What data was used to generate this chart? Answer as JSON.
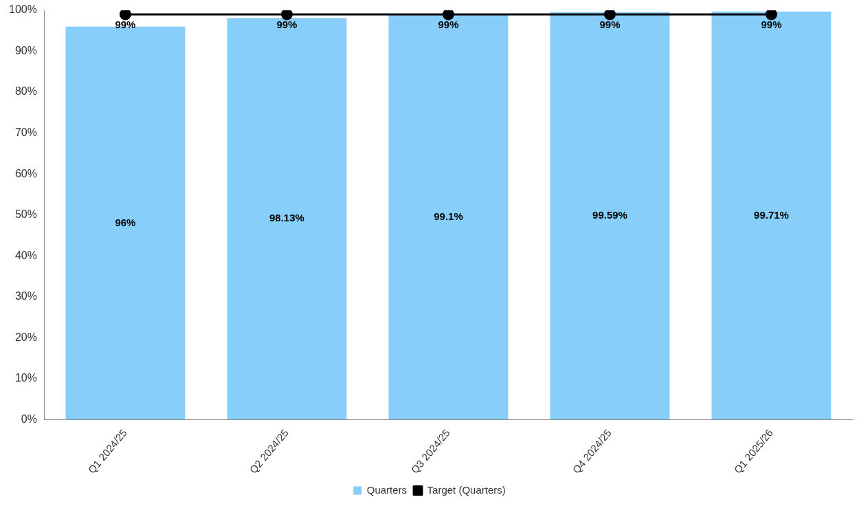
{
  "chart_data": {
    "type": "bar",
    "categories": [
      "Q1 2024/25",
      "Q2 2024/25",
      "Q3 2024/25",
      "Q4 2024/25",
      "Q1 2025/26"
    ],
    "series": [
      {
        "name": "Quarters",
        "color": "#87cefa",
        "values": [
          96,
          98.13,
          99.1,
          99.59,
          99.71
        ],
        "value_labels": [
          "96%",
          "98.13%",
          "99.1%",
          "99.59%",
          "99.71%"
        ]
      },
      {
        "name": "Target (Quarters)",
        "type": "line",
        "color": "#000000",
        "marker": "circle",
        "values": [
          99,
          99,
          99,
          99,
          99
        ],
        "value_labels": [
          "99%",
          "99%",
          "99%",
          "99%",
          "99%"
        ]
      }
    ],
    "ylim": [
      0,
      100
    ],
    "yticks": [
      {
        "value": 0,
        "label": "0%"
      },
      {
        "value": 10,
        "label": "10%"
      },
      {
        "value": 20,
        "label": "20%"
      },
      {
        "value": 30,
        "label": "30%"
      },
      {
        "value": 40,
        "label": "40%"
      },
      {
        "value": 50,
        "label": "50%"
      },
      {
        "value": 60,
        "label": "60%"
      },
      {
        "value": 70,
        "label": "70%"
      },
      {
        "value": 80,
        "label": "80%"
      },
      {
        "value": 90,
        "label": "90%"
      },
      {
        "value": 100,
        "label": "100%"
      }
    ],
    "grid": false,
    "legend": "bottom"
  }
}
